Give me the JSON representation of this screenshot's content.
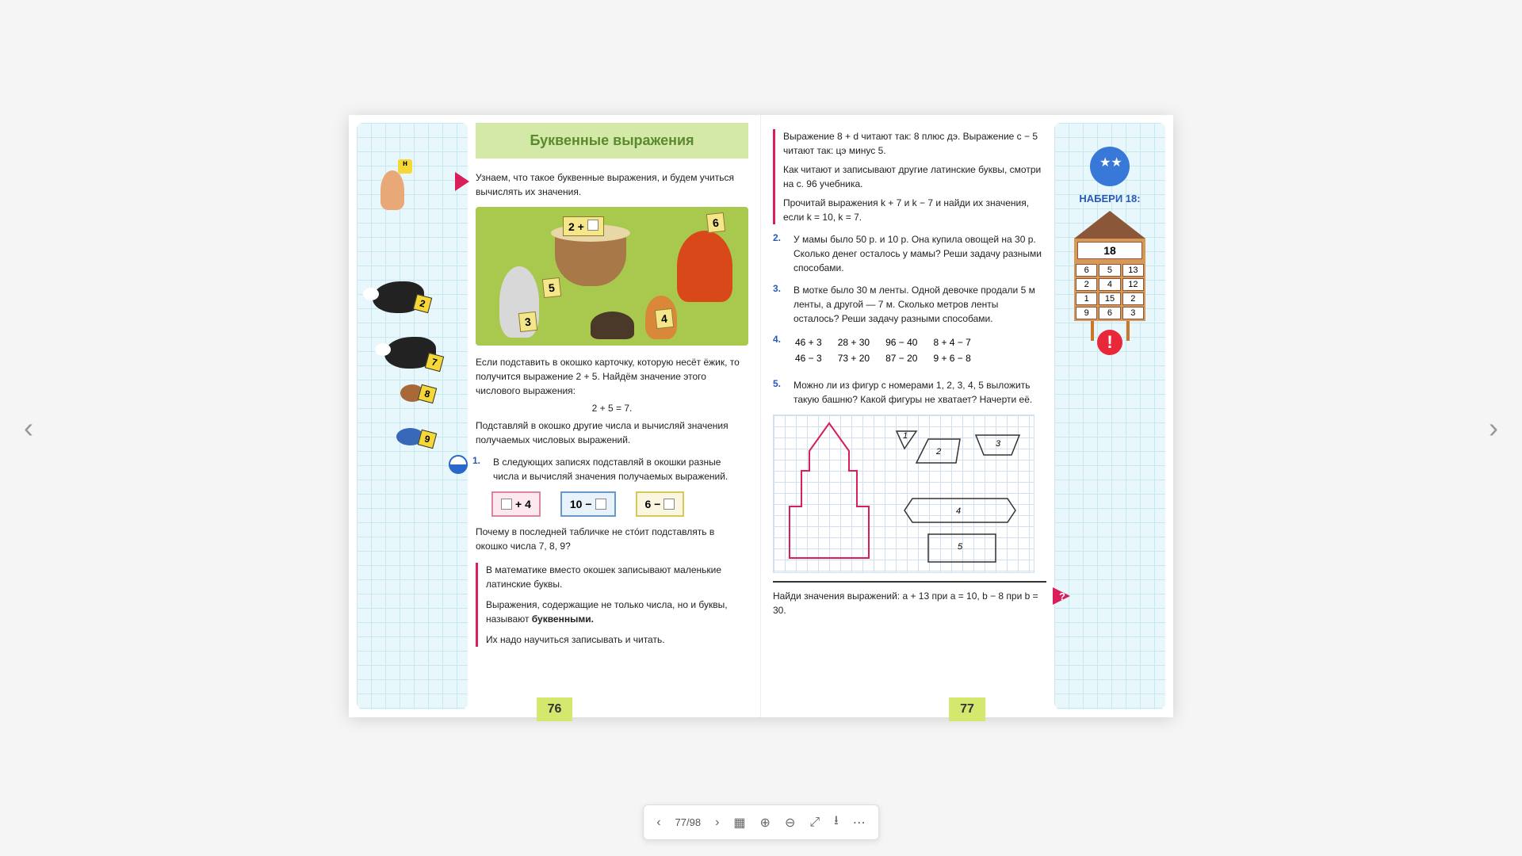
{
  "left": {
    "title": "Буквенные выражения",
    "intro": "Узнаем, что такое буквенные выражения, и будем учиться вычислять их значения.",
    "illus_cards": {
      "eq": "2 +",
      "c6": "6",
      "c5": "5",
      "c3": "3",
      "c4": "4"
    },
    "p1": "Если подставить в окошко карточку, которую несёт ёжик, то получится выражение 2 + 5. Найдём значение этого числового выражения:",
    "p1_expr": "2 + 5 = 7.",
    "p2": "Подставляй в окошко другие числа и вычисляй значения получаемых числовых выражений.",
    "t1_num": "1.",
    "t1": "В следующих записях подставляй в окошки разные числа и вычисляй значения получаемых выражений.",
    "expr": {
      "a1": "+ 4",
      "b1": "10 −",
      "c1": "6 −"
    },
    "p3": "Почему в последней табличке не сто́ит подставлять в окошко числа 7, 8, 9?",
    "box1": "В математике вместо окошек записывают маленькие латинские буквы.",
    "box2": "Выражения, содержащие не только числа, но и буквы, называют буквенными.",
    "box3": "Их надо научиться записывать и читать.",
    "page_num": "76",
    "margin_nums": [
      "2",
      "7",
      "8",
      "9"
    ]
  },
  "right": {
    "r1": "Выражение 8 + d читают так: 8 плюс дэ. Выражение c − 5 читают так: цэ минус 5.",
    "r2": "Как читают и записывают другие латинские буквы, смотри на с. 96 учебника.",
    "r3": "Прочитай выражения k + 7 и k − 7 и найди их значения, если k = 10, k = 7.",
    "t2_num": "2.",
    "t2": "У мамы было 50 р. и 10 р. Она купила овощей на 30 р. Сколько денег осталось у мамы? Реши задачу разными способами.",
    "t3_num": "3.",
    "t3": "В мотке было 30 м ленты. Одной девочке продали 5 м ленты, а другой — 7 м. Сколько метров ленты осталось? Реши задачу разными способами.",
    "t4_num": "4.",
    "t4_rows": [
      [
        "46 + 3",
        "28 + 30",
        "96 − 40",
        "8 + 4 − 7"
      ],
      [
        "46 − 3",
        "73 + 20",
        "87 − 20",
        "9 + 6 − 8"
      ]
    ],
    "t5_num": "5.",
    "t5": "Можно ли из фигур с номерами 1, 2, 3, 4, 5 выложить такую башню? Какой фигуры не хватает? Начерти её.",
    "shape_labels": [
      "1",
      "2",
      "3",
      "4",
      "5"
    ],
    "bottom": "Найди значения выражений: a + 13 при a = 10, b − 8 при b = 30.",
    "page_num": "77",
    "naberi": "НАБЕРИ 18:",
    "house_top": "18",
    "house_grid": [
      "6",
      "5",
      "13",
      "2",
      "4",
      "12",
      "1",
      "15",
      "2",
      "9",
      "6",
      "3"
    ]
  },
  "toolbar": {
    "pages": "77/98"
  }
}
